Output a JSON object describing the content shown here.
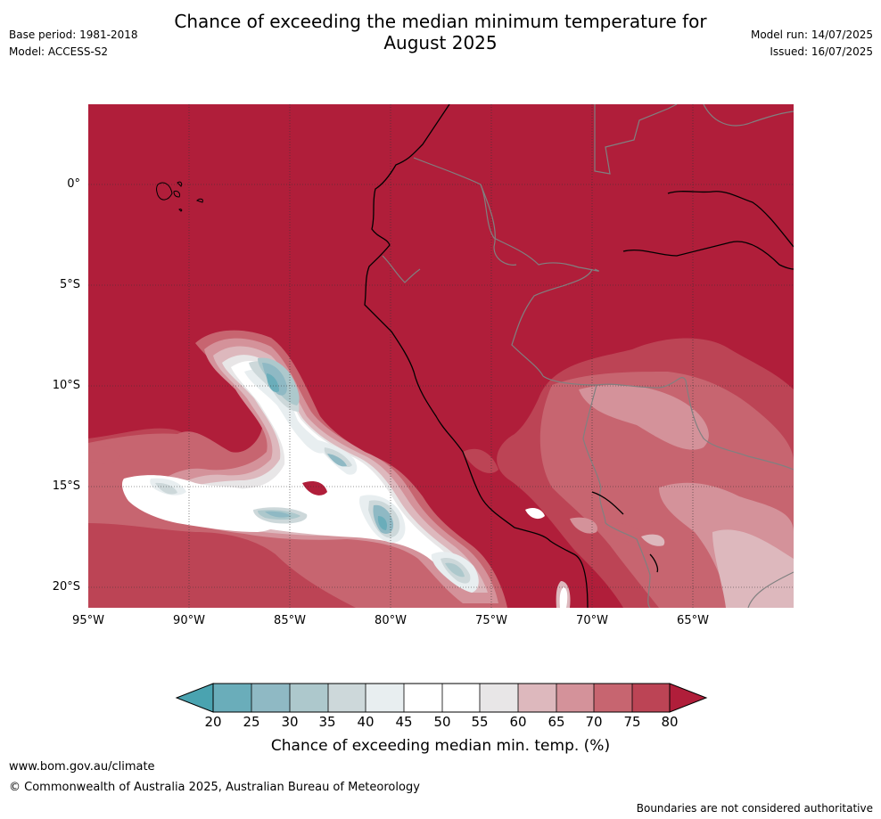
{
  "header": {
    "title_line1": "Chance of exceeding the median minimum temperature for",
    "title_line2": "August 2025",
    "base_period": "Base period: 1981-2018",
    "model": "Model: ACCESS-S2",
    "model_run": "Model run: 14/07/2025",
    "issued": "Issued: 16/07/2025"
  },
  "map": {
    "latitude_labels": [
      "0°",
      "5°S",
      "10°S",
      "15°S",
      "20°S"
    ],
    "longitude_labels": [
      "95°W",
      "90°W",
      "85°W",
      "80°W",
      "75°W",
      "70°W",
      "65°W"
    ],
    "extent": {
      "lon_min": -95,
      "lon_max": -60,
      "lat_min": -21,
      "lat_max": 4
    },
    "background_category": "80+",
    "colors": {
      "lt20": "#4aa3b0",
      "20-25": "#6aadba",
      "25-30": "#8fb9c4",
      "30-35": "#adc8cc",
      "35-40": "#cdd8da",
      "40-45": "#e8eef0",
      "45-50": "#ffffff",
      "50-55": "#ffffff",
      "55-60": "#e8e6e7",
      "60-65": "#ddb8bd",
      "65-70": "#d4929a",
      "70-75": "#c76570",
      "75-80": "#bc4455",
      "80+": "#b01e3a"
    },
    "coastline_color": "#000000",
    "border_color": "#808080",
    "grid": true
  },
  "colorbar": {
    "ticks": [
      "20",
      "25",
      "30",
      "35",
      "40",
      "45",
      "50",
      "55",
      "60",
      "65",
      "70",
      "75",
      "80"
    ],
    "label": "Chance of exceeding median min. temp. (%)",
    "extend": "both"
  },
  "footer": {
    "url": "www.bom.gov.au/climate",
    "copyright": "© Commonwealth of Australia 2025, Australian Bureau of Meteorology",
    "disclaimer": "Boundaries are not considered authoritative"
  }
}
